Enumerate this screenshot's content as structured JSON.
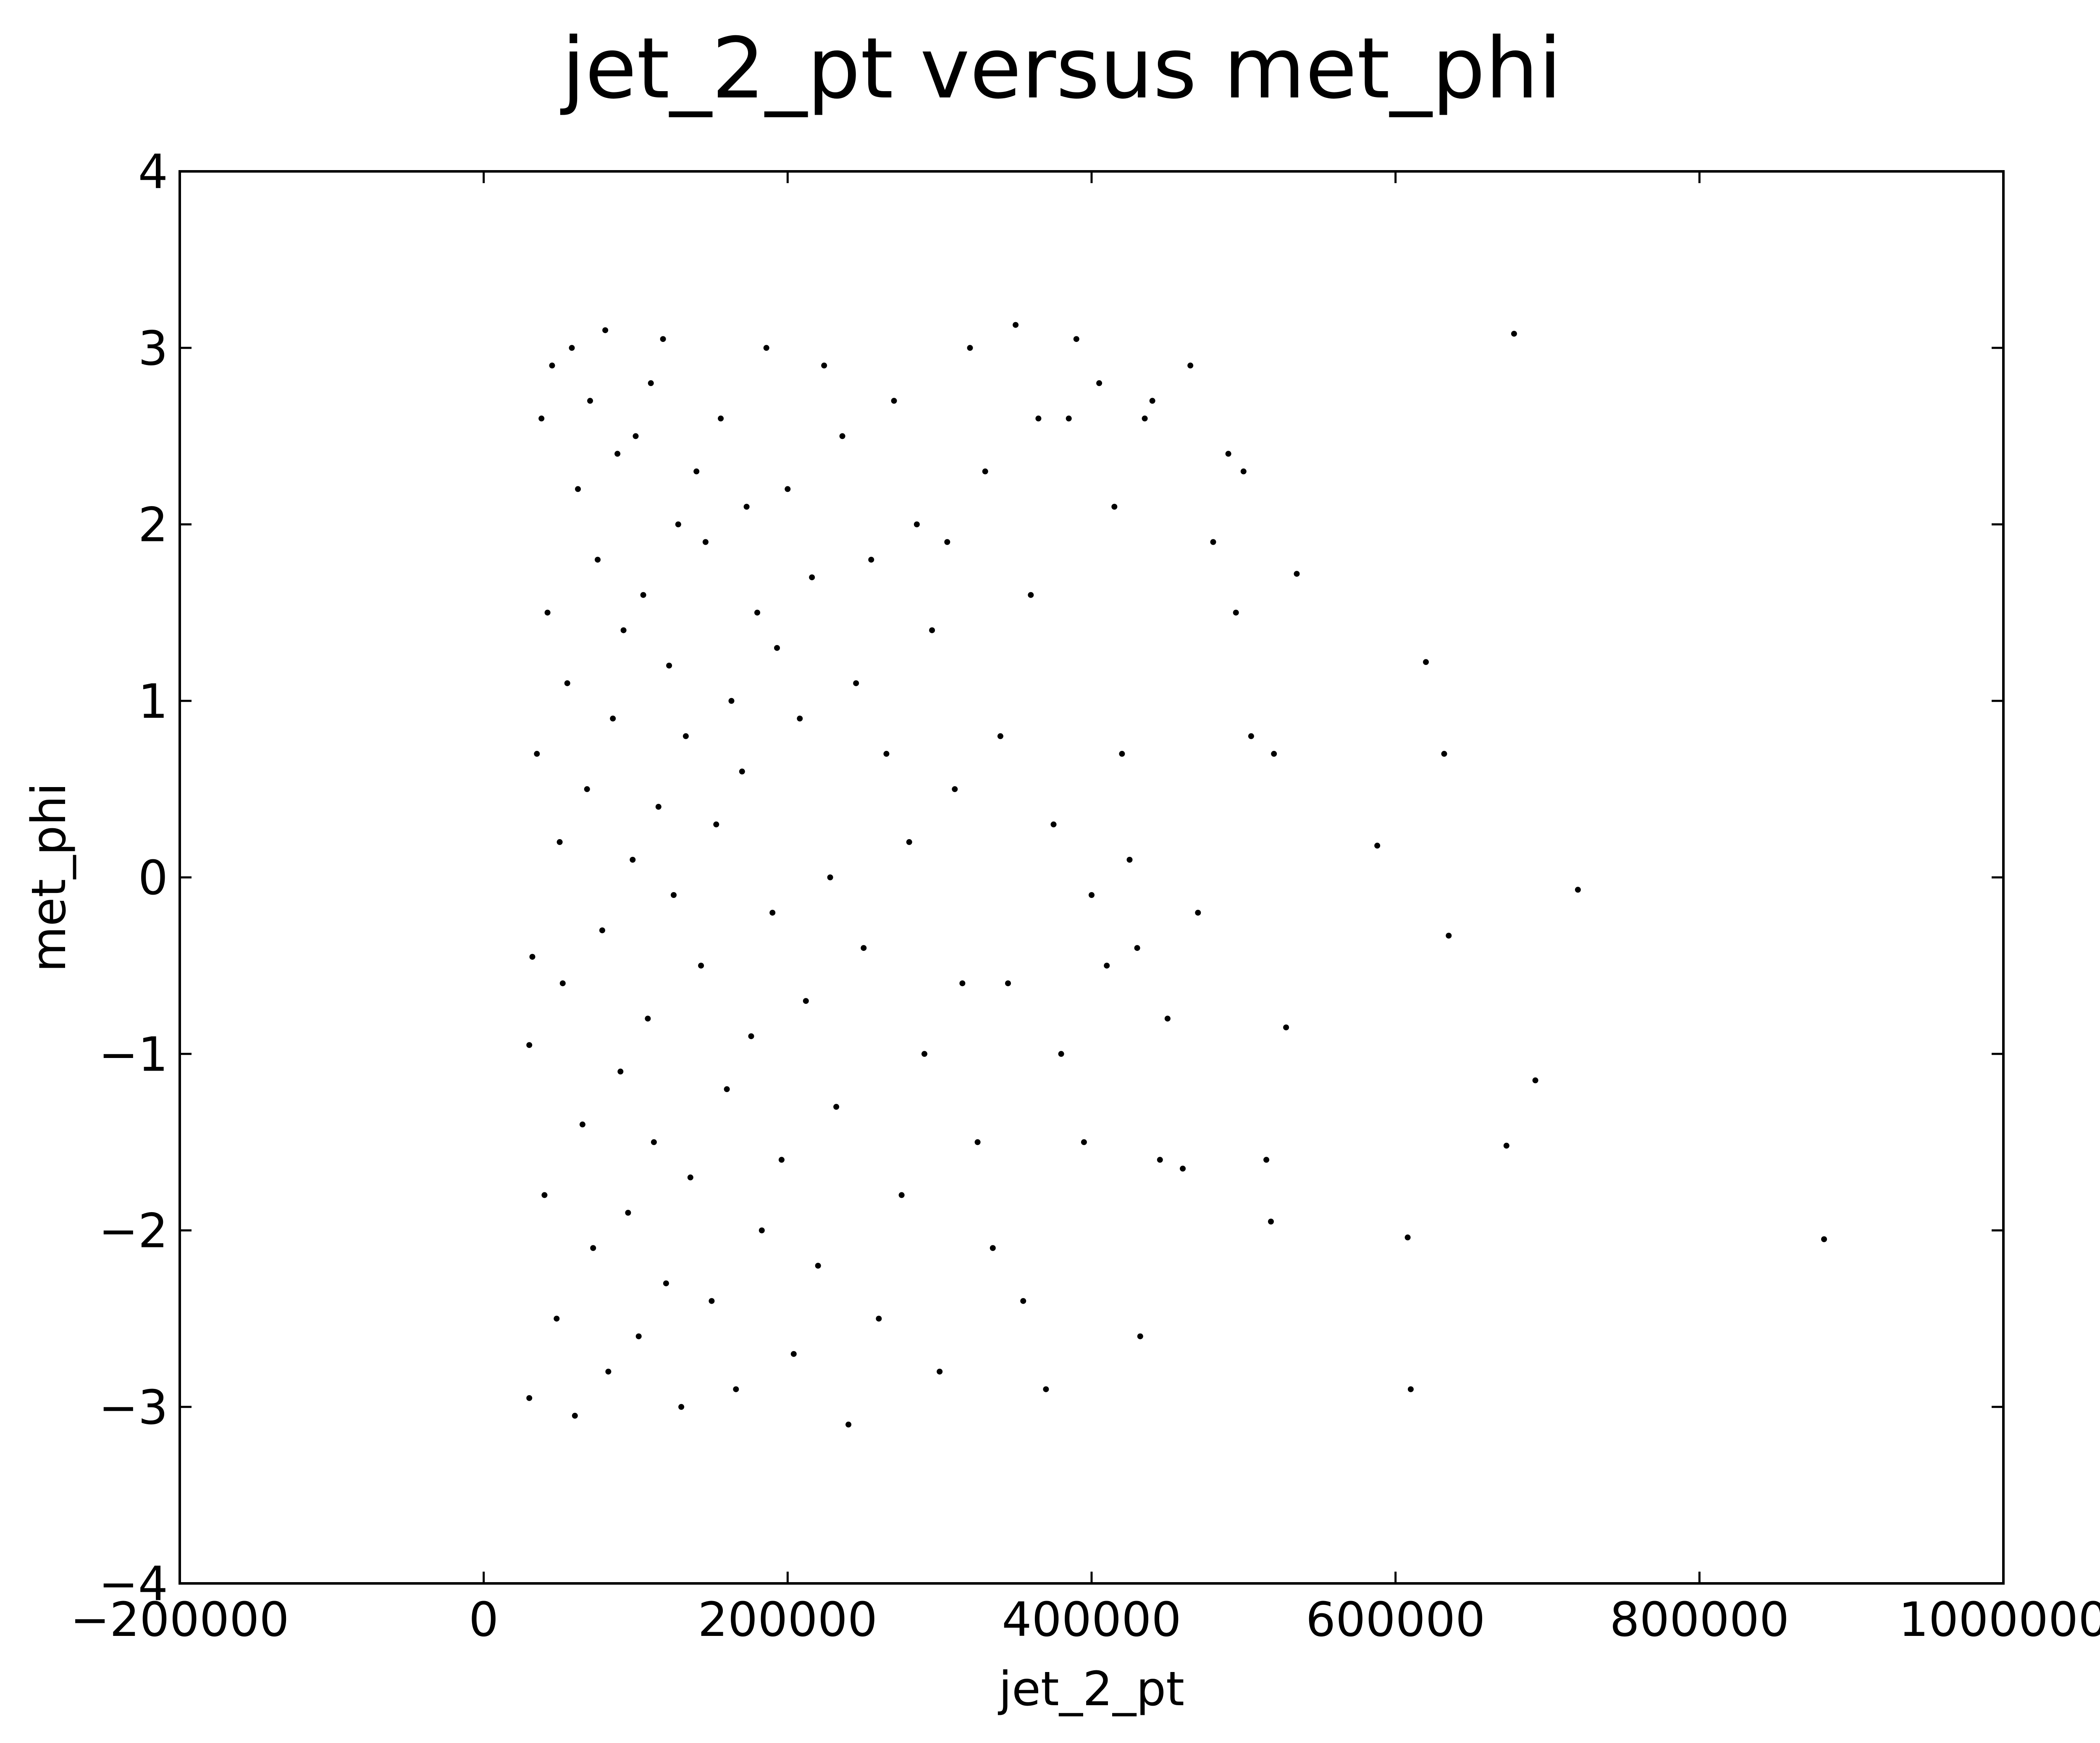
{
  "chart_data": {
    "type": "scatter",
    "title": "jet_2_pt versus met_phi",
    "xlabel": "jet_2_pt",
    "ylabel": "met_phi",
    "xlim": [
      -200000,
      1000000
    ],
    "ylim": [
      -4,
      4
    ],
    "x_ticks": [
      -200000,
      0,
      200000,
      400000,
      600000,
      800000,
      1000000
    ],
    "x_tick_labels": [
      "−200000",
      "0",
      "200000",
      "400000",
      "600000",
      "800000",
      "1000000"
    ],
    "y_ticks": [
      -4,
      -3,
      -2,
      -1,
      0,
      1,
      2,
      3,
      4
    ],
    "y_tick_labels": [
      "−4",
      "−3",
      "−2",
      "−1",
      "0",
      "1",
      "2",
      "3",
      "4"
    ],
    "grid": false,
    "legend": "none",
    "marker_color": "#000000",
    "points": [
      [
        30000,
        -0.95
      ],
      [
        30000,
        -2.95
      ],
      [
        32000,
        -0.45
      ],
      [
        35000,
        0.7
      ],
      [
        38000,
        2.6
      ],
      [
        40000,
        -1.8
      ],
      [
        42000,
        1.5
      ],
      [
        45000,
        2.9
      ],
      [
        48000,
        -2.5
      ],
      [
        50000,
        0.2
      ],
      [
        52000,
        -0.6
      ],
      [
        55000,
        1.1
      ],
      [
        58000,
        3.0
      ],
      [
        60000,
        -3.05
      ],
      [
        62000,
        2.2
      ],
      [
        65000,
        -1.4
      ],
      [
        68000,
        0.5
      ],
      [
        70000,
        2.7
      ],
      [
        72000,
        -2.1
      ],
      [
        75000,
        1.8
      ],
      [
        78000,
        -0.3
      ],
      [
        80000,
        3.1
      ],
      [
        82000,
        -2.8
      ],
      [
        85000,
        0.9
      ],
      [
        88000,
        2.4
      ],
      [
        90000,
        -1.1
      ],
      [
        92000,
        1.4
      ],
      [
        95000,
        -1.9
      ],
      [
        98000,
        0.1
      ],
      [
        100000,
        2.5
      ],
      [
        102000,
        -2.6
      ],
      [
        105000,
        1.6
      ],
      [
        108000,
        -0.8
      ],
      [
        110000,
        2.8
      ],
      [
        112000,
        -1.5
      ],
      [
        115000,
        0.4
      ],
      [
        118000,
        3.05
      ],
      [
        120000,
        -2.3
      ],
      [
        122000,
        1.2
      ],
      [
        125000,
        -0.1
      ],
      [
        128000,
        2.0
      ],
      [
        130000,
        -3.0
      ],
      [
        133000,
        0.8
      ],
      [
        136000,
        -1.7
      ],
      [
        140000,
        2.3
      ],
      [
        143000,
        -0.5
      ],
      [
        146000,
        1.9
      ],
      [
        150000,
        -2.4
      ],
      [
        153000,
        0.3
      ],
      [
        156000,
        2.6
      ],
      [
        160000,
        -1.2
      ],
      [
        163000,
        1.0
      ],
      [
        166000,
        -2.9
      ],
      [
        170000,
        0.6
      ],
      [
        173000,
        2.1
      ],
      [
        176000,
        -0.9
      ],
      [
        180000,
        1.5
      ],
      [
        183000,
        -2.0
      ],
      [
        186000,
        3.0
      ],
      [
        190000,
        -0.2
      ],
      [
        193000,
        1.3
      ],
      [
        196000,
        -1.6
      ],
      [
        200000,
        2.2
      ],
      [
        204000,
        -2.7
      ],
      [
        208000,
        0.9
      ],
      [
        212000,
        -0.7
      ],
      [
        216000,
        1.7
      ],
      [
        220000,
        -2.2
      ],
      [
        224000,
        2.9
      ],
      [
        228000,
        0.0
      ],
      [
        232000,
        -1.3
      ],
      [
        236000,
        2.5
      ],
      [
        240000,
        -3.1
      ],
      [
        245000,
        1.1
      ],
      [
        250000,
        -0.4
      ],
      [
        255000,
        1.8
      ],
      [
        260000,
        -2.5
      ],
      [
        265000,
        0.7
      ],
      [
        270000,
        2.7
      ],
      [
        275000,
        -1.8
      ],
      [
        280000,
        0.2
      ],
      [
        285000,
        2.0
      ],
      [
        290000,
        -1.0
      ],
      [
        295000,
        1.4
      ],
      [
        300000,
        -2.8
      ],
      [
        305000,
        1.9
      ],
      [
        310000,
        0.5
      ],
      [
        315000,
        -0.6
      ],
      [
        320000,
        3.0
      ],
      [
        325000,
        -1.5
      ],
      [
        330000,
        2.3
      ],
      [
        335000,
        -2.1
      ],
      [
        340000,
        0.8
      ],
      [
        345000,
        -0.6
      ],
      [
        350000,
        3.13
      ],
      [
        355000,
        -2.4
      ],
      [
        360000,
        1.6
      ],
      [
        365000,
        2.6
      ],
      [
        370000,
        -2.9
      ],
      [
        375000,
        0.3
      ],
      [
        380000,
        -1.0
      ],
      [
        385000,
        2.6
      ],
      [
        390000,
        3.05
      ],
      [
        395000,
        -1.5
      ],
      [
        400000,
        -0.1
      ],
      [
        405000,
        2.8
      ],
      [
        410000,
        -0.5
      ],
      [
        415000,
        2.1
      ],
      [
        420000,
        0.7
      ],
      [
        425000,
        0.1
      ],
      [
        430000,
        -0.4
      ],
      [
        432000,
        -2.6
      ],
      [
        435000,
        2.6
      ],
      [
        440000,
        2.7
      ],
      [
        445000,
        -1.6
      ],
      [
        450000,
        -0.8
      ],
      [
        460000,
        -1.65
      ],
      [
        465000,
        2.9
      ],
      [
        470000,
        -0.2
      ],
      [
        480000,
        1.9
      ],
      [
        490000,
        2.4
      ],
      [
        495000,
        1.5
      ],
      [
        500000,
        2.3
      ],
      [
        505000,
        0.8
      ],
      [
        515000,
        -1.6
      ],
      [
        518000,
        -1.95
      ],
      [
        520000,
        0.7
      ],
      [
        528000,
        -0.85
      ],
      [
        535000,
        1.72
      ],
      [
        588000,
        0.18
      ],
      [
        608000,
        -2.04
      ],
      [
        610000,
        -2.9
      ],
      [
        620000,
        1.22
      ],
      [
        632000,
        0.7
      ],
      [
        635000,
        -0.33
      ],
      [
        673000,
        -1.52
      ],
      [
        678000,
        3.08
      ],
      [
        692000,
        -1.15
      ],
      [
        720000,
        -0.07
      ],
      [
        882000,
        -2.05
      ]
    ]
  }
}
